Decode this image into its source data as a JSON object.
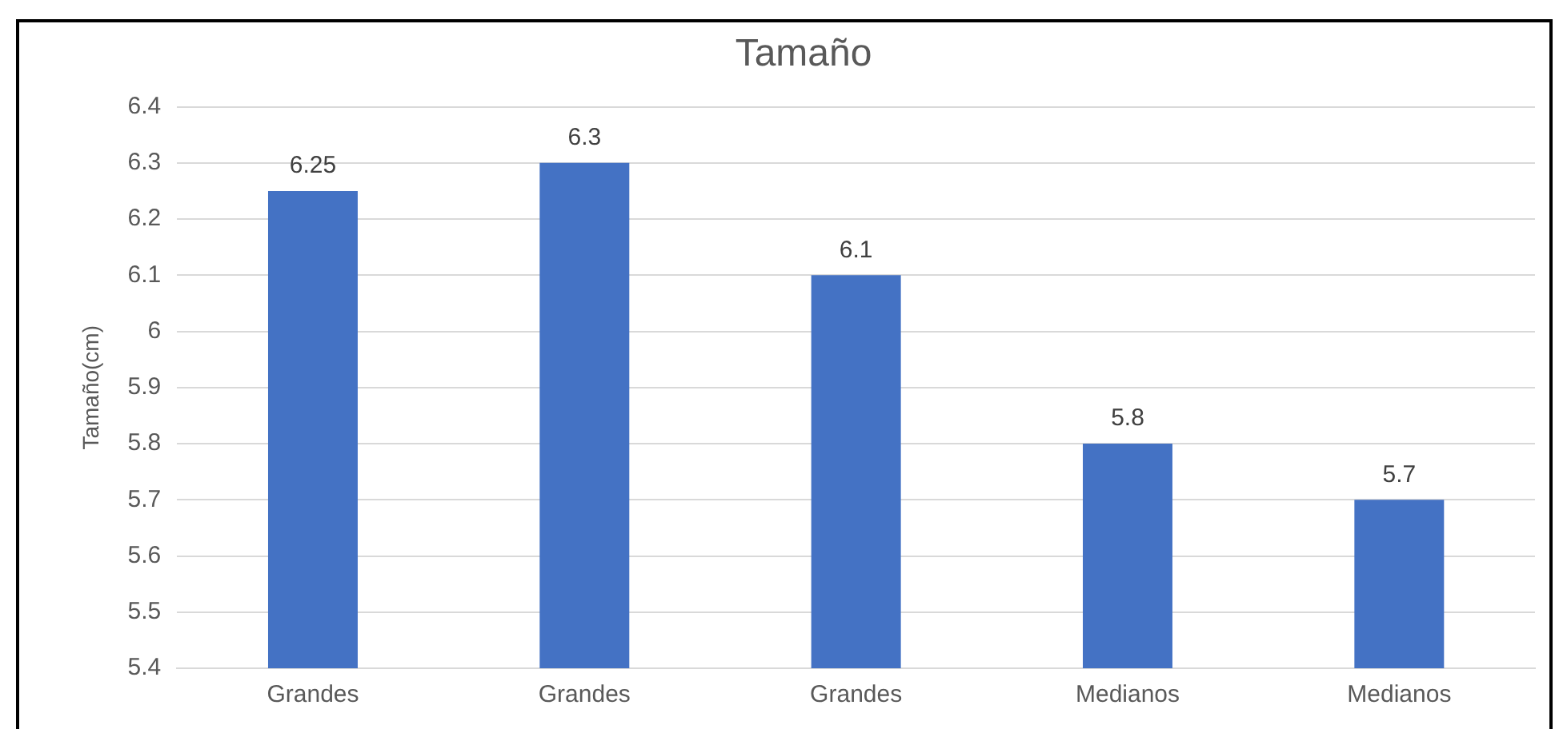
{
  "chart_data": {
    "type": "bar",
    "title": "Tamaño",
    "ylabel": "Tamaño(cm)",
    "categories": [
      "Grandes",
      "Grandes",
      "Grandes",
      "Medianos",
      "Medianos"
    ],
    "values": [
      6.25,
      6.3,
      6.1,
      5.8,
      5.7
    ],
    "color": "#4472c4",
    "ylim": [
      5.4,
      6.4
    ],
    "yticks": [
      5.4,
      5.5,
      5.6,
      5.7,
      5.8,
      5.9,
      6,
      6.1,
      6.2,
      6.3,
      6.4
    ],
    "grid": "y",
    "data_labels": true,
    "legend": false
  }
}
